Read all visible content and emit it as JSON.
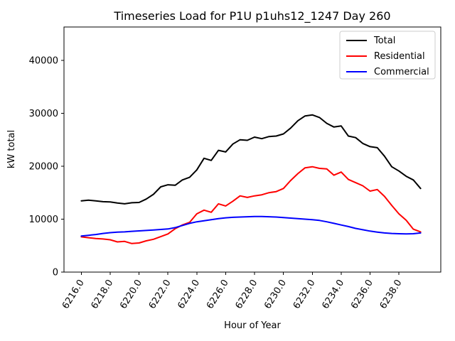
{
  "figure": {
    "background": "#ffffff",
    "axes_face": "#ffffff",
    "spine_color": "#000000"
  },
  "chart_data": {
    "type": "line",
    "title": "Timeseries Load for P1U p1uhs12_1247  Day 260",
    "xlabel": "Hour of Year",
    "ylabel": "kW total",
    "xlim": [
      6214.8,
      6240.9
    ],
    "ylim": [
      0,
      46300
    ],
    "grid": false,
    "legend_position": "upper right",
    "yticks": [
      {
        "value": 0,
        "label": "0"
      },
      {
        "value": 10000,
        "label": "10000"
      },
      {
        "value": 20000,
        "label": "20000"
      },
      {
        "value": 30000,
        "label": "30000"
      },
      {
        "value": 40000,
        "label": "40000"
      }
    ],
    "xticks": [
      {
        "value": 6216,
        "label": "6216.0"
      },
      {
        "value": 6218,
        "label": "6218.0"
      },
      {
        "value": 6220,
        "label": "6220.0"
      },
      {
        "value": 6222,
        "label": "6222.0"
      },
      {
        "value": 6224,
        "label": "6224.0"
      },
      {
        "value": 6226,
        "label": "6226.0"
      },
      {
        "value": 6228,
        "label": "6228.0"
      },
      {
        "value": 6230,
        "label": "6230.0"
      },
      {
        "value": 6232,
        "label": "6232.0"
      },
      {
        "value": 6234,
        "label": "6234.0"
      },
      {
        "value": 6236,
        "label": "6236.0"
      },
      {
        "value": 6238,
        "label": "6238.0"
      }
    ],
    "x": [
      6216,
      6216.5,
      6217,
      6217.5,
      6218,
      6218.5,
      6219,
      6219.5,
      6220,
      6220.5,
      6221,
      6221.5,
      6222,
      6222.5,
      6223,
      6223.5,
      6224,
      6224.5,
      6225,
      6225.5,
      6226,
      6226.5,
      6227,
      6227.5,
      6228,
      6228.5,
      6229,
      6229.5,
      6230,
      6230.5,
      6231,
      6231.5,
      6232,
      6232.5,
      6233,
      6233.5,
      6234,
      6234.5,
      6235,
      6235.5,
      6236,
      6236.5,
      6237,
      6237.5,
      6238,
      6238.5,
      6239,
      6239.5
    ],
    "series": [
      {
        "name": "Total",
        "color": "#000000",
        "values": [
          13450,
          13600,
          13450,
          13300,
          13250,
          13050,
          12900,
          13100,
          13150,
          13800,
          14700,
          16100,
          16500,
          16400,
          17400,
          17900,
          19300,
          21500,
          21100,
          23000,
          22700,
          24200,
          25000,
          24900,
          25500,
          25200,
          25600,
          25700,
          26100,
          27200,
          28600,
          29500,
          29700,
          29200,
          28100,
          27400,
          27600,
          25700,
          25400,
          24300,
          23700,
          23500,
          21900,
          19900,
          19100,
          18100,
          17400,
          15800
        ]
      },
      {
        "name": "Residential",
        "color": "#ff0000",
        "values": [
          6650,
          6500,
          6350,
          6250,
          6100,
          5700,
          5800,
          5400,
          5500,
          5900,
          6200,
          6700,
          7200,
          8200,
          8900,
          9400,
          11000,
          11700,
          11300,
          12900,
          12500,
          13400,
          14400,
          14100,
          14400,
          14600,
          15000,
          15200,
          15800,
          17300,
          18600,
          19700,
          19900,
          19600,
          19500,
          18300,
          18900,
          17500,
          16900,
          16300,
          15300,
          15600,
          14300,
          12600,
          11000,
          9800,
          8100,
          7600
        ]
      },
      {
        "name": "Commercial",
        "color": "#0000ff",
        "values": [
          6800,
          6950,
          7100,
          7300,
          7450,
          7550,
          7600,
          7700,
          7780,
          7860,
          7950,
          8050,
          8150,
          8400,
          8800,
          9200,
          9500,
          9700,
          9900,
          10100,
          10250,
          10350,
          10400,
          10450,
          10500,
          10500,
          10450,
          10400,
          10300,
          10200,
          10100,
          10000,
          9900,
          9750,
          9500,
          9200,
          8900,
          8600,
          8250,
          8000,
          7750,
          7550,
          7400,
          7300,
          7250,
          7200,
          7250,
          7400
        ]
      }
    ]
  }
}
